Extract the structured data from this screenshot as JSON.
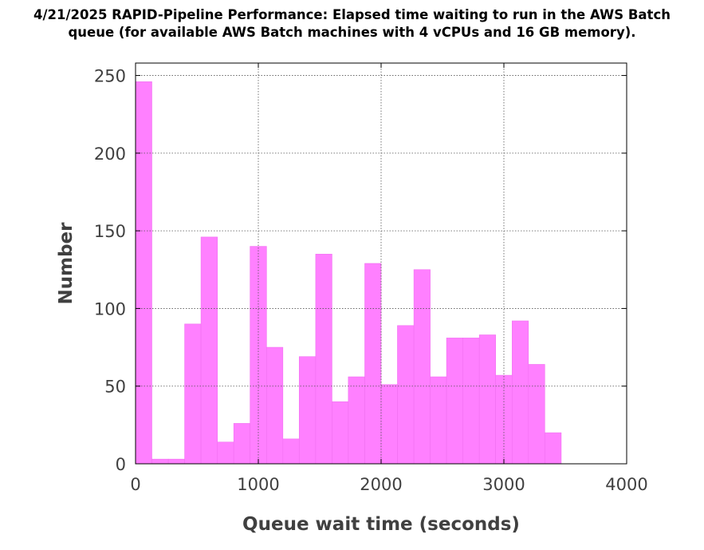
{
  "title_lines": [
    "4/21/2025  RAPID-Pipeline Performance: Elapsed time waiting to run in the AWS Batch",
    "queue (for available AWS Batch machines with 4 vCPUs and 16 GB memory)."
  ],
  "colors": {
    "bar_fill": "#ff80ff",
    "bar_edge": "#f070f0",
    "grid": "#555555",
    "axis": "#000000"
  },
  "chart_data": {
    "type": "bar",
    "title": "4/21/2025  RAPID-Pipeline Performance: Elapsed time waiting to run in the AWS Batch queue (for available AWS Batch machines with 4 vCPUs and 16 GB memory).",
    "xlabel": "Queue wait time (seconds)",
    "ylabel": "Number",
    "xlim": [
      0,
      4000
    ],
    "ylim": [
      0,
      258
    ],
    "xticks": [
      0,
      1000,
      2000,
      3000,
      4000
    ],
    "xtick_labels": [
      "0",
      "1000",
      "2000",
      "3000",
      "4000"
    ],
    "yticks": [
      0,
      50,
      100,
      150,
      200,
      250
    ],
    "ytick_labels": [
      "0",
      "50",
      "100",
      "150",
      "200",
      "250"
    ],
    "grid": true,
    "bin_edges": [
      0,
      133,
      267,
      400,
      533,
      667,
      800,
      933,
      1067,
      1200,
      1333,
      1467,
      1600,
      1733,
      1867,
      2000,
      2133,
      2267,
      2400,
      2533,
      2667,
      2800,
      2933,
      3067,
      3200,
      3333,
      3467
    ],
    "values": [
      246,
      3,
      3,
      90,
      146,
      14,
      26,
      140,
      75,
      16,
      69,
      135,
      40,
      56,
      129,
      51,
      89,
      125,
      56,
      81,
      81,
      83,
      57,
      92,
      64,
      20
    ]
  }
}
